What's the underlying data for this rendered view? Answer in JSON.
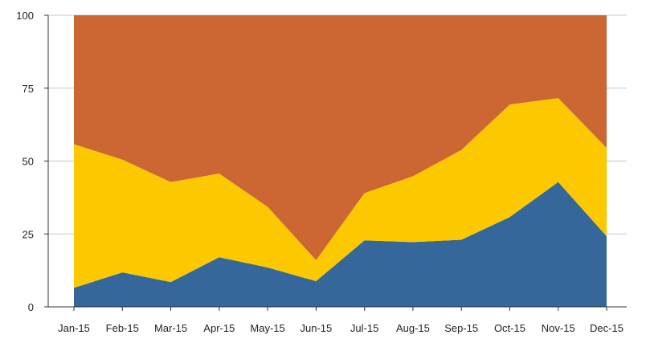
{
  "chart_data": {
    "type": "area",
    "stacking": "percent",
    "categories": [
      "Jan-15",
      "Feb-15",
      "Mar-15",
      "Apr-15",
      "May-15",
      "Jun-15",
      "Jul-15",
      "Aug-15",
      "Sep-15",
      "Oct-15",
      "Nov-15",
      "Dec-15"
    ],
    "series": [
      {
        "color": "#35679a",
        "values": [
          6.5,
          11.8,
          8.5,
          17.0,
          13.5,
          8.8,
          22.8,
          22.2,
          23.0,
          30.8,
          42.8,
          24.2
        ]
      },
      {
        "color": "#fcc800",
        "values": [
          49.3,
          38.7,
          34.3,
          28.7,
          20.8,
          7.2,
          16.2,
          22.6,
          30.8,
          38.6,
          28.8,
          30.3
        ]
      },
      {
        "color": "#cc6633",
        "values": [
          44.2,
          49.5,
          57.2,
          54.3,
          65.7,
          84.0,
          61.0,
          55.2,
          46.2,
          30.6,
          28.4,
          45.5
        ]
      }
    ],
    "ylim": [
      0,
      100
    ],
    "yticks": [
      "0",
      "25",
      "50",
      "75",
      "100"
    ],
    "ytick_values": [
      0,
      25,
      50,
      75,
      100
    ],
    "grid": true,
    "legend": "none"
  }
}
